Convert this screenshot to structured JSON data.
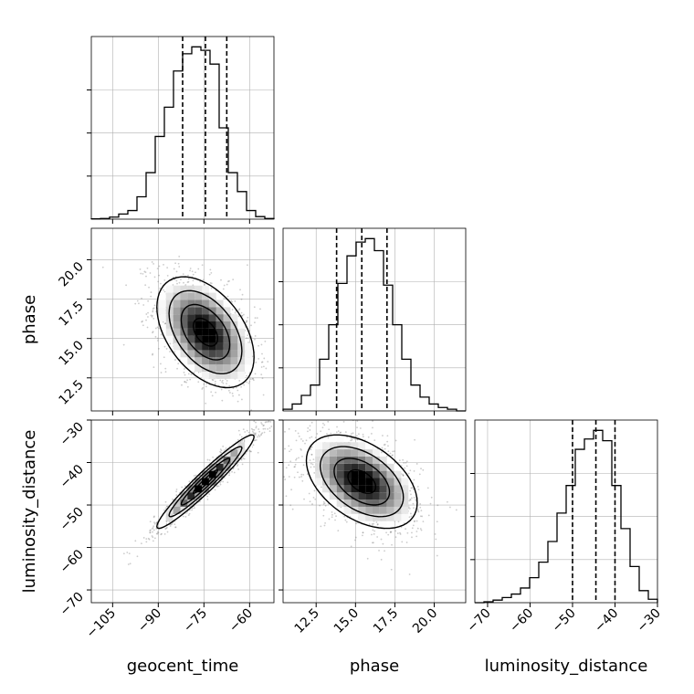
{
  "chart_data": {
    "type": "corner",
    "parameters": [
      {
        "name": "geocent_time",
        "label": "geocent_time",
        "range": [
          -112,
          -52
        ],
        "ticks": [
          -105,
          -90,
          -75,
          -60
        ],
        "tick_labels": [
          "−105",
          "−90",
          "−75",
          "−60"
        ],
        "quantiles": [
          -82.0,
          -74.5,
          -67.5
        ],
        "hist_bin_edges": [
          -112,
          -109,
          -106,
          -103,
          -100,
          -97,
          -94,
          -91,
          -88,
          -85,
          -82,
          -79,
          -76,
          -73,
          -70,
          -67,
          -64,
          -61,
          -58,
          -55,
          -52
        ],
        "hist_counts": [
          0.002,
          0.004,
          0.012,
          0.03,
          0.05,
          0.13,
          0.27,
          0.48,
          0.65,
          0.86,
          0.96,
          1.0,
          0.98,
          0.9,
          0.53,
          0.27,
          0.16,
          0.05,
          0.015,
          0.004
        ]
      },
      {
        "name": "phase",
        "label": "phase",
        "range": [
          10.4,
          22.0
        ],
        "ticks": [
          12.5,
          15.0,
          17.5,
          20.0
        ],
        "tick_labels": [
          "12.5",
          "15.0",
          "17.5",
          "20.0"
        ],
        "quantiles": [
          13.8,
          15.4,
          17.0
        ],
        "hist_bin_edges": [
          10.4,
          10.98,
          11.56,
          12.14,
          12.72,
          13.3,
          13.88,
          14.46,
          15.04,
          15.62,
          16.2,
          16.78,
          17.36,
          17.94,
          18.52,
          19.1,
          19.68,
          20.26,
          20.84,
          21.42,
          22.0
        ],
        "hist_counts": [
          0.01,
          0.04,
          0.09,
          0.15,
          0.3,
          0.5,
          0.74,
          0.9,
          0.98,
          1.0,
          0.93,
          0.73,
          0.5,
          0.3,
          0.15,
          0.08,
          0.04,
          0.02,
          0.01,
          0.0
        ]
      },
      {
        "name": "luminosity_distance",
        "label": "luminosity_distance",
        "range": [
          -73,
          -30
        ],
        "ticks": [
          -70,
          -60,
          -50,
          -40,
          -30
        ],
        "tick_labels": [
          "−70",
          "−60",
          "−50",
          "−40",
          "−30"
        ],
        "quantiles": [
          -50.0,
          -44.5,
          -40.0
        ],
        "hist_bin_edges": [
          -73,
          -70.85,
          -68.7,
          -66.55,
          -64.4,
          -62.25,
          -60.1,
          -57.95,
          -55.8,
          -53.65,
          -51.5,
          -49.35,
          -47.2,
          -45.05,
          -42.9,
          -40.75,
          -38.6,
          -36.45,
          -34.3,
          -32.15,
          -30
        ],
        "hist_counts": [
          0.0,
          0.005,
          0.015,
          0.03,
          0.05,
          0.085,
          0.145,
          0.235,
          0.355,
          0.52,
          0.68,
          0.89,
          0.95,
          1.0,
          0.94,
          0.68,
          0.43,
          0.21,
          0.07,
          0.02
        ]
      }
    ],
    "correlations": {
      "phase_vs_geocent_time": -0.45,
      "luminosity_distance_vs_geocent_time": 0.96,
      "luminosity_distance_vs_phase": -0.45
    },
    "contour_levels": [
      0.118,
      0.393,
      0.675,
      0.865
    ],
    "grid": true,
    "colors": {
      "hist": "#000000",
      "quantile": "#000000",
      "grid": "#b0b0b0",
      "contour": "#000000",
      "points": "#6e6e6e"
    }
  }
}
